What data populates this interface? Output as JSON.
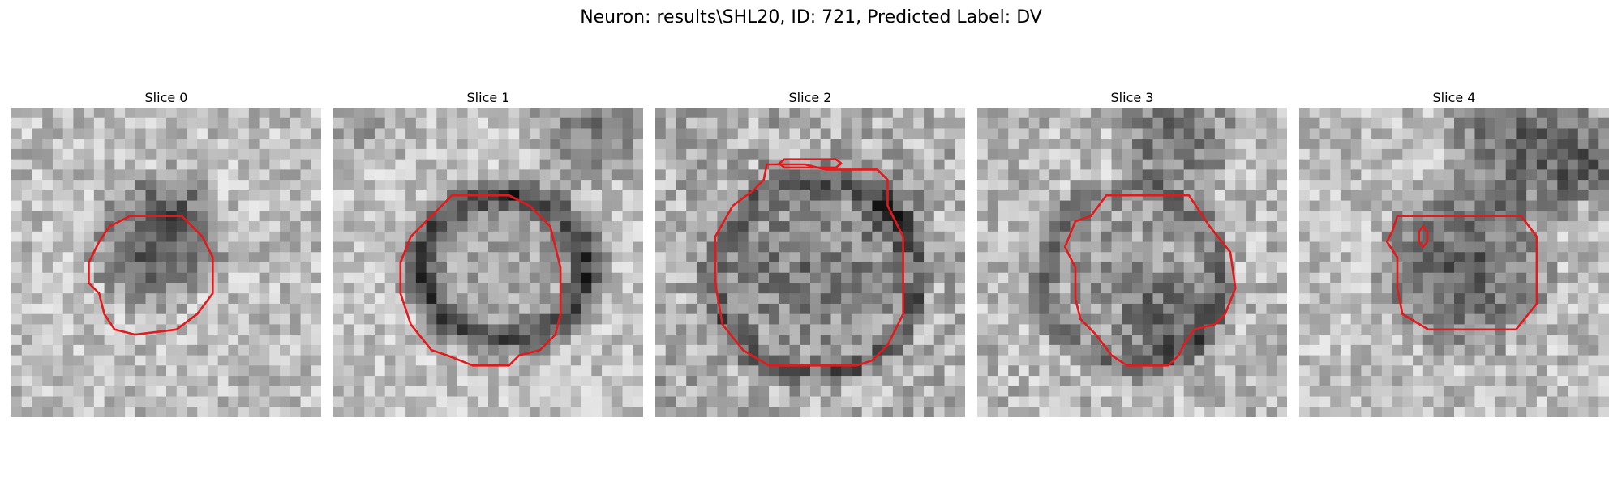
{
  "figure": {
    "title": "Neuron: results\\SHL20, ID: 721, Predicted Label: DV"
  },
  "colors": {
    "contour": "#e31a1c",
    "background": "#ffffff"
  },
  "slices": [
    {
      "title": "Slice 0"
    },
    {
      "title": "Slice 1"
    },
    {
      "title": "Slice 2"
    },
    {
      "title": "Slice 3"
    },
    {
      "title": "Slice 4"
    }
  ]
}
